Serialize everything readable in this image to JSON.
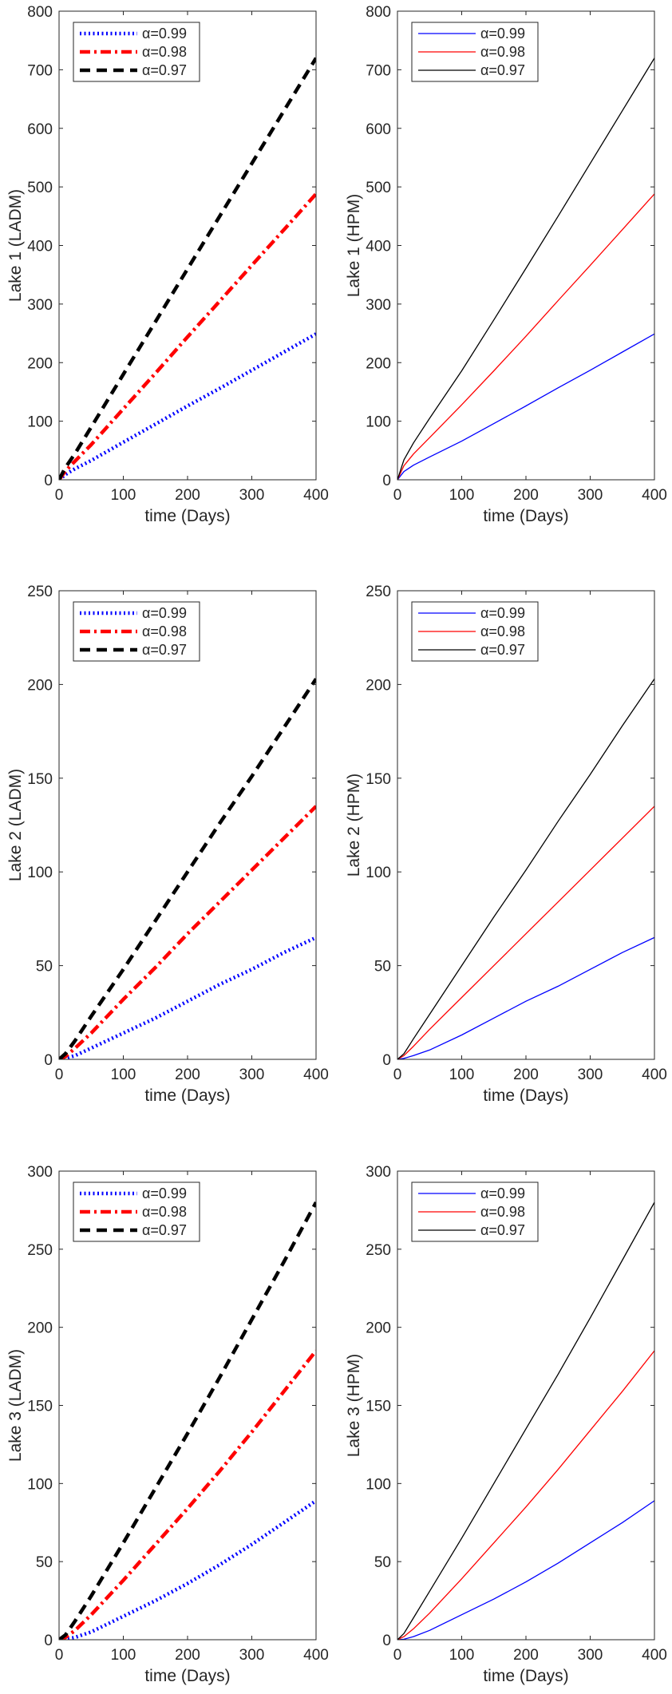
{
  "figure": {
    "legend_prefix": "α",
    "legend_eq": "=",
    "line_colors": {
      "0.99": "#0000ff",
      "0.98": "#ff0000",
      "0.97": "#000000"
    }
  },
  "chart_data": [
    {
      "type": "line",
      "id": "lake1-ladm",
      "style": "thick-dashed",
      "title": "",
      "xlabel": "time (Days)",
      "ylabel": "Lake 1 (LADM)",
      "xlim": [
        0,
        400
      ],
      "ylim": [
        0,
        800
      ],
      "xticks": [
        0,
        100,
        200,
        300,
        400
      ],
      "yticks": [
        0,
        100,
        200,
        300,
        400,
        500,
        600,
        700,
        800
      ],
      "legend_position": "top-left",
      "series": [
        {
          "name": "0.99",
          "x": [
            0,
            10,
            25,
            50,
            100,
            150,
            200,
            250,
            300,
            350,
            400
          ],
          "y": [
            0,
            9,
            19,
            33,
            64,
            95,
            126,
            156,
            187,
            218,
            249
          ]
        },
        {
          "name": "0.98",
          "x": [
            0,
            10,
            25,
            50,
            100,
            150,
            200,
            250,
            300,
            350,
            400
          ],
          "y": [
            0,
            15,
            32,
            60,
            121,
            182,
            244,
            305,
            366,
            427,
            488
          ]
        },
        {
          "name": "0.97",
          "x": [
            0,
            10,
            25,
            50,
            100,
            150,
            200,
            250,
            300,
            350,
            400
          ],
          "y": [
            0,
            21,
            45,
            90,
            180,
            270,
            360,
            450,
            540,
            630,
            720
          ]
        }
      ]
    },
    {
      "type": "line",
      "id": "lake1-hpm",
      "style": "thin-solid",
      "title": "",
      "xlabel": "time (Days)",
      "ylabel": "Lake 1 (HPM)",
      "xlim": [
        0,
        400
      ],
      "ylim": [
        0,
        800
      ],
      "xticks": [
        0,
        100,
        200,
        300,
        400
      ],
      "yticks": [
        0,
        100,
        200,
        300,
        400,
        500,
        600,
        700,
        800
      ],
      "legend_position": "top-left",
      "series": [
        {
          "name": "0.99",
          "x": [
            0,
            10,
            25,
            50,
            100,
            150,
            200,
            250,
            300,
            350,
            400
          ],
          "y": [
            0,
            14,
            25,
            39,
            66,
            96,
            126,
            157,
            187,
            218,
            249
          ]
        },
        {
          "name": "0.98",
          "x": [
            0,
            10,
            25,
            50,
            100,
            150,
            200,
            250,
            300,
            350,
            400
          ],
          "y": [
            0,
            24,
            44,
            72,
            128,
            186,
            245,
            306,
            366,
            427,
            488
          ]
        },
        {
          "name": "0.97",
          "x": [
            0,
            10,
            25,
            50,
            100,
            150,
            200,
            250,
            300,
            350,
            400
          ],
          "y": [
            0,
            34,
            63,
            105,
            186,
            273,
            361,
            450,
            540,
            630,
            720
          ]
        }
      ]
    },
    {
      "type": "line",
      "id": "lake2-ladm",
      "style": "thick-dashed",
      "title": "",
      "xlabel": "time (Days)",
      "ylabel": "Lake 2 (LADM)",
      "xlim": [
        0,
        400
      ],
      "ylim": [
        0,
        250
      ],
      "xticks": [
        0,
        100,
        200,
        300,
        400
      ],
      "yticks": [
        0,
        50,
        100,
        150,
        200,
        250
      ],
      "legend_position": "top-left",
      "series": [
        {
          "name": "0.99",
          "x": [
            0,
            10,
            25,
            50,
            100,
            150,
            200,
            250,
            300,
            350,
            400
          ],
          "y": [
            0,
            0.5,
            2,
            6,
            14,
            22,
            31,
            40,
            48,
            57,
            65
          ]
        },
        {
          "name": "0.98",
          "x": [
            0,
            10,
            25,
            50,
            100,
            150,
            200,
            250,
            300,
            350,
            400
          ],
          "y": [
            0,
            1.5,
            6,
            14,
            32,
            49,
            67,
            84,
            101,
            118,
            135
          ]
        },
        {
          "name": "0.97",
          "x": [
            0,
            10,
            25,
            50,
            100,
            150,
            200,
            250,
            300,
            350,
            400
          ],
          "y": [
            0,
            3,
            10,
            23,
            48,
            74,
            100,
            126,
            151,
            177,
            203
          ]
        }
      ]
    },
    {
      "type": "line",
      "id": "lake2-hpm",
      "style": "thin-solid",
      "title": "",
      "xlabel": "time (Days)",
      "ylabel": "Lake 2 (HPM)",
      "xlim": [
        0,
        400
      ],
      "ylim": [
        0,
        250
      ],
      "xticks": [
        0,
        100,
        200,
        300,
        400
      ],
      "yticks": [
        0,
        50,
        100,
        150,
        200,
        250
      ],
      "legend_position": "top-left",
      "series": [
        {
          "name": "0.99",
          "x": [
            0,
            10,
            25,
            50,
            100,
            150,
            200,
            250,
            300,
            350,
            400
          ],
          "y": [
            0,
            0.5,
            2,
            5,
            13,
            22,
            31,
            39,
            48,
            57,
            65
          ]
        },
        {
          "name": "0.98",
          "x": [
            0,
            10,
            25,
            50,
            100,
            150,
            200,
            250,
            300,
            350,
            400
          ],
          "y": [
            0,
            2,
            7,
            16,
            33,
            50,
            67,
            84,
            101,
            118,
            135
          ]
        },
        {
          "name": "0.97",
          "x": [
            0,
            10,
            25,
            50,
            100,
            150,
            200,
            250,
            300,
            350,
            400
          ],
          "y": [
            0,
            3,
            11,
            24,
            50,
            76,
            101,
            127,
            152,
            178,
            203
          ]
        }
      ]
    },
    {
      "type": "line",
      "id": "lake3-ladm",
      "style": "thick-dashed",
      "title": "",
      "xlabel": "time (Days)",
      "ylabel": "Lake 3 (LADM)",
      "xlim": [
        0,
        400
      ],
      "ylim": [
        0,
        300
      ],
      "xticks": [
        0,
        100,
        200,
        300,
        400
      ],
      "yticks": [
        0,
        50,
        100,
        150,
        200,
        250,
        300
      ],
      "legend_position": "top-left",
      "series": [
        {
          "name": "0.99",
          "x": [
            0,
            10,
            25,
            50,
            100,
            150,
            200,
            250,
            300,
            350,
            400
          ],
          "y": [
            0,
            0.3,
            1.5,
            5,
            15,
            25,
            36,
            48,
            61,
            75,
            89
          ]
        },
        {
          "name": "0.98",
          "x": [
            0,
            10,
            25,
            50,
            100,
            150,
            200,
            250,
            300,
            350,
            400
          ],
          "y": [
            0,
            1.5,
            6,
            16,
            38,
            61,
            84,
            108,
            133,
            159,
            185
          ]
        },
        {
          "name": "0.97",
          "x": [
            0,
            10,
            25,
            50,
            100,
            150,
            200,
            250,
            300,
            350,
            400
          ],
          "y": [
            0,
            3,
            12,
            28,
            62,
            97,
            132,
            168,
            205,
            242,
            280
          ]
        }
      ]
    },
    {
      "type": "line",
      "id": "lake3-hpm",
      "style": "thin-solid",
      "title": "",
      "xlabel": "time (Days)",
      "ylabel": "Lake 3 (HPM)",
      "xlim": [
        0,
        400
      ],
      "ylim": [
        0,
        300
      ],
      "xticks": [
        0,
        100,
        200,
        300,
        400
      ],
      "yticks": [
        0,
        50,
        100,
        150,
        200,
        250,
        300
      ],
      "legend_position": "top-left",
      "series": [
        {
          "name": "0.99",
          "x": [
            0,
            10,
            25,
            50,
            100,
            150,
            200,
            250,
            300,
            350,
            400
          ],
          "y": [
            0,
            0.3,
            2,
            6,
            16,
            26,
            37,
            49,
            62,
            75,
            89
          ]
        },
        {
          "name": "0.98",
          "x": [
            0,
            10,
            25,
            50,
            100,
            150,
            200,
            250,
            300,
            350,
            400
          ],
          "y": [
            0,
            2,
            7,
            17,
            39,
            62,
            85,
            109,
            134,
            159,
            185
          ]
        },
        {
          "name": "0.97",
          "x": [
            0,
            10,
            25,
            50,
            100,
            150,
            200,
            250,
            300,
            350,
            400
          ],
          "y": [
            0,
            4,
            14,
            31,
            65,
            100,
            135,
            170,
            206,
            243,
            280
          ]
        }
      ]
    }
  ]
}
